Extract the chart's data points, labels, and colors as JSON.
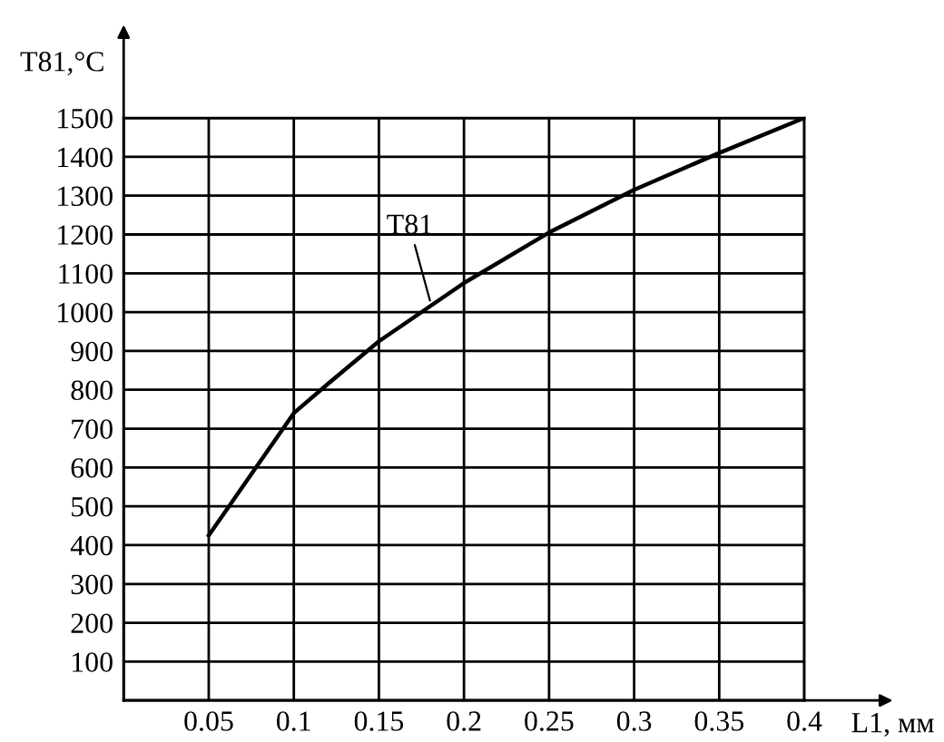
{
  "chart_data": {
    "type": "line",
    "xlabel": "L1, мм",
    "ylabel": "T81,°C",
    "x": [
      0.05,
      0.1,
      0.12,
      0.15,
      0.2,
      0.25,
      0.3,
      0.35,
      0.4
    ],
    "series": [
      {
        "color": "#000000",
        "values": [
          425,
          740,
          815,
          925,
          1075,
          1205,
          1315,
          1410,
          1500
        ]
      }
    ],
    "annotations": [
      {
        "text": "T81",
        "x": 0.18,
        "y": 1030
      }
    ],
    "xlim": [
      0,
      0.4
    ],
    "ylim": [
      0,
      1500
    ],
    "xticks": [
      0.05,
      0.1,
      0.15,
      0.2,
      0.25,
      0.3,
      0.35,
      0.4
    ],
    "yticks": [
      {
        "value": 0,
        "label": null
      },
      100,
      200,
      300,
      400,
      500,
      600,
      700,
      800,
      900,
      1000,
      1100,
      1200,
      1300,
      1400,
      1500
    ],
    "grid": true,
    "line_style": "solid"
  }
}
